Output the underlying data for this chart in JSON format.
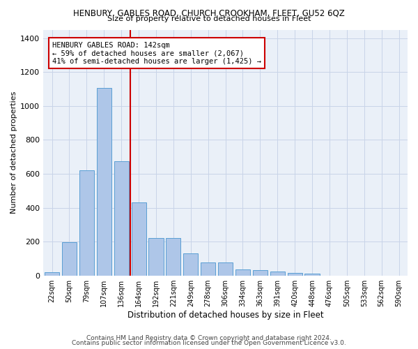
{
  "title": "HENBURY, GABLES ROAD, CHURCH CROOKHAM, FLEET, GU52 6QZ",
  "subtitle": "Size of property relative to detached houses in Fleet",
  "xlabel": "Distribution of detached houses by size in Fleet",
  "ylabel": "Number of detached properties",
  "bar_values": [
    20,
    195,
    620,
    1105,
    675,
    430,
    220,
    220,
    130,
    75,
    75,
    35,
    30,
    25,
    15,
    10,
    0,
    0,
    0,
    0,
    0
  ],
  "x_labels": [
    "22sqm",
    "50sqm",
    "79sqm",
    "107sqm",
    "136sqm",
    "164sqm",
    "192sqm",
    "221sqm",
    "249sqm",
    "278sqm",
    "306sqm",
    "334sqm",
    "363sqm",
    "391sqm",
    "420sqm",
    "448sqm",
    "476sqm",
    "505sqm",
    "533sqm",
    "562sqm",
    "590sqm"
  ],
  "bar_color": "#aec6e8",
  "bar_edge_color": "#5a9fd4",
  "vline_x": 4.5,
  "vline_color": "#cc0000",
  "annotation_line1": "HENBURY GABLES ROAD: 142sqm",
  "annotation_line2": "← 59% of detached houses are smaller (2,067)",
  "annotation_line3": "41% of semi-detached houses are larger (1,425) →",
  "annotation_box_color": "#cc0000",
  "ylim": [
    0,
    1450
  ],
  "yticks": [
    0,
    200,
    400,
    600,
    800,
    1000,
    1200,
    1400
  ],
  "grid_color": "#c8d4e8",
  "bg_color": "#eaf0f8",
  "footer1": "Contains HM Land Registry data © Crown copyright and database right 2024.",
  "footer2": "Contains public sector information licensed under the Open Government Licence v3.0."
}
